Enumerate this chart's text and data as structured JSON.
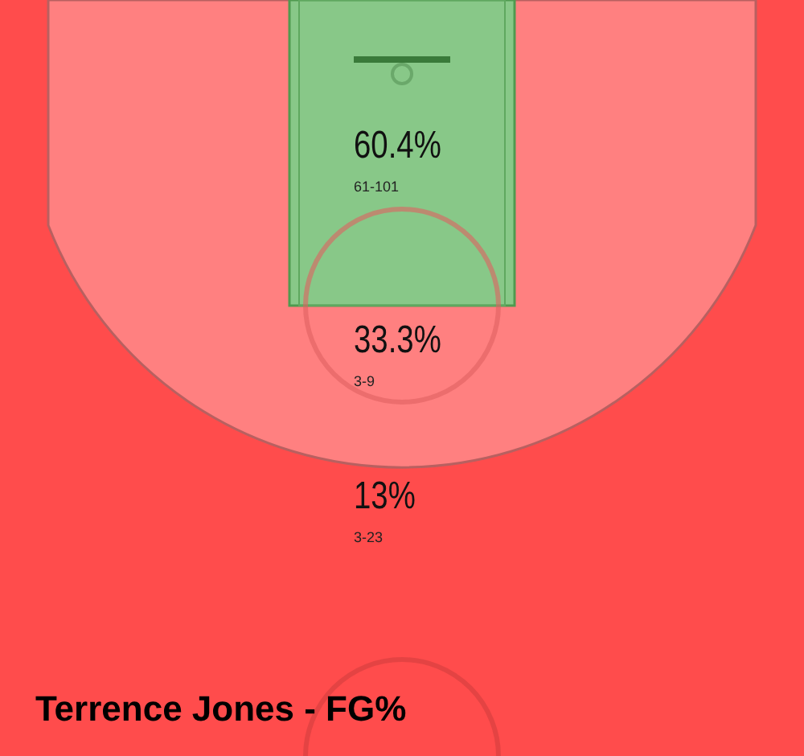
{
  "chart_data": {
    "type": "other",
    "title": "Terrence Jones - FG%",
    "categories": [
      null,
      null,
      null
    ],
    "values": [
      60.4,
      33.3,
      13
    ],
    "value_labels": [
      "60.4%",
      "33.3%",
      "13%"
    ],
    "colors": [
      "#88c888",
      "#ff8080",
      "#ff4c4c"
    ],
    "annotations": [
      "61-101",
      "3-9",
      "3-23"
    ]
  }
}
